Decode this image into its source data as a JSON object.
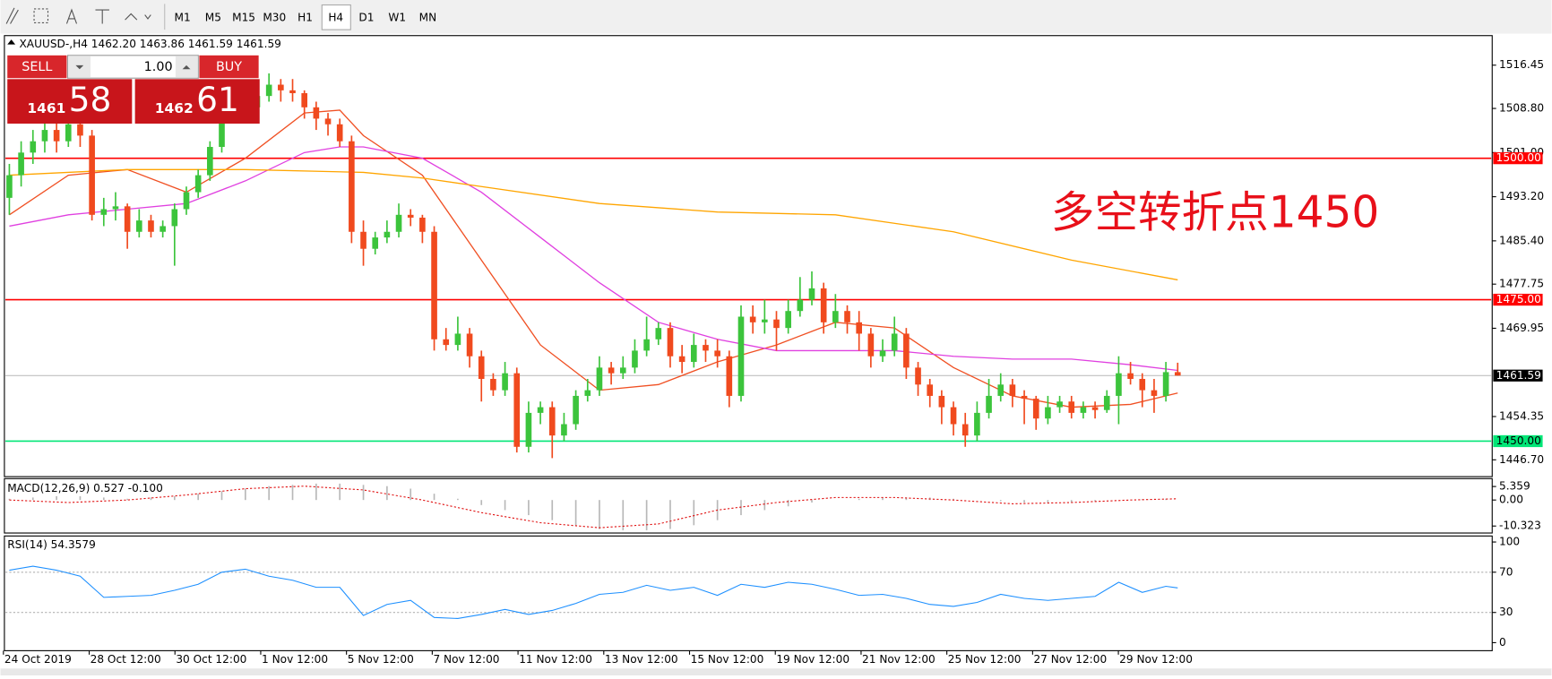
{
  "toolbar": {
    "timeframes": [
      "M1",
      "M5",
      "M15",
      "M30",
      "H1",
      "H4",
      "D1",
      "W1",
      "MN"
    ],
    "active": 5
  },
  "trade_panel": {
    "sell": "SELL",
    "buy": "BUY",
    "lots": "1.00",
    "bid_small": "1461",
    "bid_big": "58",
    "ask_small": "1462",
    "ask_big": "61"
  },
  "chart_data": {
    "type": "candlestick",
    "symbol_info": "XAUUSD-,H4  1462.20 1463.86 1461.59 1461.59",
    "up_color": "#3cc43c",
    "down_color": "#f04a1e",
    "candles": [
      [
        1493,
        1499,
        1490,
        1497
      ],
      [
        1497,
        1503,
        1495,
        1501
      ],
      [
        1501,
        1505,
        1499,
        1503
      ],
      [
        1503,
        1507,
        1501,
        1505
      ],
      [
        1505,
        1507,
        1501,
        1503
      ],
      [
        1503,
        1508,
        1502,
        1506
      ],
      [
        1506,
        1508,
        1502,
        1504
      ],
      [
        1504,
        1505,
        1489,
        1490
      ],
      [
        1490,
        1493,
        1488,
        1491
      ],
      [
        1491,
        1494,
        1489,
        1491.5
      ],
      [
        1491.5,
        1492,
        1484,
        1487
      ],
      [
        1487,
        1491,
        1486,
        1489
      ],
      [
        1489,
        1490,
        1486,
        1487
      ],
      [
        1487,
        1489,
        1486,
        1488
      ],
      [
        1488,
        1492,
        1481,
        1491
      ],
      [
        1491,
        1495,
        1490,
        1494
      ],
      [
        1494,
        1498,
        1493,
        1497
      ],
      [
        1497,
        1503,
        1496,
        1502
      ],
      [
        1502,
        1509,
        1501,
        1508
      ],
      [
        1508,
        1512,
        1507,
        1510
      ],
      [
        1510,
        1511,
        1507,
        1509
      ],
      [
        1509,
        1513,
        1508,
        1511
      ],
      [
        1511,
        1515,
        1510,
        1513
      ],
      [
        1513,
        1514,
        1510,
        1512
      ],
      [
        1512,
        1514,
        1510,
        1511.5
      ],
      [
        1511.5,
        1512,
        1507,
        1509
      ],
      [
        1509,
        1510,
        1505,
        1507
      ],
      [
        1507,
        1508,
        1504,
        1506
      ],
      [
        1506,
        1507,
        1502,
        1503
      ],
      [
        1503,
        1504,
        1485,
        1487
      ],
      [
        1487,
        1489,
        1481,
        1484
      ],
      [
        1484,
        1487,
        1483,
        1486
      ],
      [
        1486,
        1489,
        1485,
        1487
      ],
      [
        1487,
        1492,
        1486,
        1490
      ],
      [
        1490,
        1491,
        1488,
        1489.5
      ],
      [
        1489.5,
        1490,
        1485,
        1487
      ],
      [
        1487,
        1488,
        1466,
        1468
      ],
      [
        1468,
        1470,
        1466,
        1467
      ],
      [
        1467,
        1472,
        1466,
        1469
      ],
      [
        1469,
        1470,
        1463,
        1465
      ],
      [
        1465,
        1466,
        1457,
        1461
      ],
      [
        1461,
        1462,
        1458,
        1459
      ],
      [
        1459,
        1464,
        1458,
        1462
      ],
      [
        1462,
        1463,
        1448,
        1449
      ],
      [
        1449,
        1457,
        1448,
        1455
      ],
      [
        1455,
        1457,
        1453,
        1456
      ],
      [
        1456,
        1457,
        1447,
        1451
      ],
      [
        1451,
        1455,
        1450,
        1453
      ],
      [
        1453,
        1459,
        1452,
        1458
      ],
      [
        1458,
        1461,
        1457,
        1459
      ],
      [
        1459,
        1465,
        1458,
        1463
      ],
      [
        1463,
        1464,
        1460,
        1462
      ],
      [
        1462,
        1465,
        1461,
        1463
      ],
      [
        1463,
        1468,
        1462,
        1466
      ],
      [
        1466,
        1472,
        1465,
        1468
      ],
      [
        1468,
        1471,
        1467,
        1470
      ],
      [
        1470,
        1471,
        1463,
        1465
      ],
      [
        1465,
        1467,
        1462,
        1464
      ],
      [
        1464,
        1469,
        1463,
        1467
      ],
      [
        1467,
        1468,
        1464,
        1466
      ],
      [
        1466,
        1468,
        1463,
        1465
      ],
      [
        1465,
        1466,
        1456,
        1458
      ],
      [
        1458,
        1474,
        1457,
        1472
      ],
      [
        1472,
        1474,
        1469,
        1471
      ],
      [
        1471,
        1475,
        1469,
        1471.5
      ],
      [
        1471.5,
        1473,
        1466,
        1470
      ],
      [
        1470,
        1475,
        1469,
        1473
      ],
      [
        1473,
        1479,
        1472,
        1475
      ],
      [
        1475,
        1480,
        1474,
        1477
      ],
      [
        1477,
        1478,
        1469,
        1471
      ],
      [
        1471,
        1476,
        1470,
        1473
      ],
      [
        1473,
        1474,
        1469,
        1471
      ],
      [
        1471,
        1473,
        1466,
        1469
      ],
      [
        1469,
        1470,
        1463,
        1465
      ],
      [
        1465,
        1468,
        1464,
        1466
      ],
      [
        1466,
        1472,
        1465,
        1469
      ],
      [
        1469,
        1470,
        1461,
        1463
      ],
      [
        1463,
        1464,
        1458,
        1460
      ],
      [
        1460,
        1461,
        1456,
        1458
      ],
      [
        1458,
        1459,
        1453,
        1456
      ],
      [
        1456,
        1457,
        1451,
        1453
      ],
      [
        1453,
        1455,
        1449,
        1451
      ],
      [
        1451,
        1457,
        1450,
        1455
      ],
      [
        1455,
        1461,
        1454,
        1458
      ],
      [
        1458,
        1462,
        1457,
        1460
      ],
      [
        1460,
        1461,
        1456,
        1458
      ],
      [
        1458,
        1459,
        1453,
        1457.5
      ],
      [
        1457.5,
        1458,
        1452,
        1454
      ],
      [
        1454,
        1458,
        1453,
        1456
      ],
      [
        1456,
        1458,
        1455,
        1457
      ],
      [
        1457,
        1458,
        1454,
        1455
      ],
      [
        1455,
        1457,
        1454,
        1456
      ],
      [
        1456,
        1457,
        1454,
        1455.5
      ],
      [
        1455.5,
        1459,
        1455,
        1458
      ],
      [
        1458,
        1465,
        1453,
        1462
      ],
      [
        1462,
        1464,
        1460,
        1461
      ],
      [
        1461,
        1462,
        1456,
        1459
      ],
      [
        1459,
        1461,
        1455,
        1458
      ],
      [
        1458,
        1464,
        1457,
        1462.2
      ],
      [
        1462.2,
        1463.86,
        1461.59,
        1461.59
      ]
    ],
    "ylim": [
      1443.9,
      1521.5
    ],
    "yticks": [
      1516.45,
      {
        "value": 1508.8,
        "label": "1508.80"
      },
      {
        "value": 1501,
        "label": "1501.00"
      },
      {
        "value": 1493.2,
        "label": "1493.20"
      },
      {
        "value": 1485.4,
        "label": "1485.40"
      },
      1477.75,
      1469.95,
      1454.35,
      {
        "value": 1446.7,
        "label": "1446.70"
      }
    ],
    "levels": [
      {
        "value": 1500,
        "label": "1500.00",
        "color": "#ff0000"
      },
      {
        "value": 1475,
        "label": "1475.00",
        "color": "#ff0000"
      },
      {
        "value": 1450,
        "label": "1450.00",
        "color": "#00e676"
      }
    ],
    "current_price": {
      "value": 1461.59,
      "label": "1461.59"
    },
    "moving_averages": [
      {
        "color": "#f05023",
        "x": [
          0,
          5,
          10,
          15,
          20,
          25,
          28,
          30,
          35,
          40,
          45,
          50,
          55,
          60,
          65,
          70,
          75,
          80,
          85,
          90,
          95,
          99
        ],
        "values": [
          1490,
          1497,
          1498,
          1494,
          1500,
          1508,
          1508.5,
          1504,
          1497,
          1482,
          1467,
          1459,
          1460,
          1464,
          1467,
          1471,
          1470,
          1463,
          1458,
          1456,
          1456.5,
          1458.5
        ]
      },
      {
        "color": "#e040e0",
        "x": [
          0,
          5,
          10,
          15,
          20,
          25,
          28,
          30,
          35,
          40,
          45,
          50,
          55,
          60,
          65,
          70,
          75,
          80,
          85,
          90,
          95,
          99
        ],
        "values": [
          1488,
          1490,
          1491,
          1492,
          1496,
          1501,
          1502,
          1502,
          1500,
          1494,
          1486,
          1478,
          1471,
          1468,
          1466,
          1466,
          1466,
          1465,
          1464.5,
          1464.5,
          1463.5,
          1462.5
        ]
      },
      {
        "color": "#ffa500",
        "x": [
          0,
          10,
          20,
          30,
          35,
          40,
          50,
          60,
          70,
          80,
          90,
          99
        ],
        "values": [
          1497,
          1498,
          1498,
          1497.5,
          1496.5,
          1495,
          1492,
          1490.5,
          1490,
          1487,
          1482,
          1478.5
        ]
      }
    ],
    "annotation": "多空转折点1450",
    "x_labels": [
      "24 Oct 2019",
      "28 Oct 12:00",
      "30 Oct 12:00",
      "1 Nov 12:00",
      "5 Nov 12:00",
      "7 Nov 12:00",
      "11 Nov 12:00",
      "13 Nov 12:00",
      "15 Nov 12:00",
      "19 Nov 12:00",
      "21 Nov 12:00",
      "25 Nov 12:00",
      "27 Nov 12:00",
      "29 Nov 12:00"
    ],
    "macd": {
      "label": "MACD(12,26,9) 0.527 -0.100",
      "ylim": [
        -12.7,
        7.7
      ],
      "yticks": [
        5.359,
        {
          "value": 0,
          "label": "0.00"
        },
        -10.323
      ],
      "histogram": {
        "x": [
          0,
          2,
          4,
          6,
          8,
          10,
          12,
          14,
          16,
          18,
          20,
          22,
          24,
          26,
          28,
          30,
          32,
          34,
          36,
          38,
          40,
          42,
          44,
          46,
          48,
          50,
          52,
          54,
          56,
          58,
          60,
          62,
          64,
          66,
          68,
          70,
          72,
          74,
          76,
          78,
          80,
          82,
          84,
          86,
          88,
          90,
          92,
          94,
          96,
          98
        ],
        "values": [
          0.5,
          1,
          1.5,
          1.5,
          1,
          0.5,
          1,
          1.5,
          2.5,
          3.5,
          4.5,
          5.5,
          6,
          6.5,
          6.5,
          6,
          5.5,
          4.5,
          2.5,
          0.5,
          -2,
          -4,
          -6,
          -8,
          -10,
          -11.5,
          -12,
          -12,
          -11.5,
          -10,
          -8,
          -6,
          -4,
          -2.5,
          -1,
          0,
          0.5,
          1,
          1,
          1,
          0.5,
          0,
          -0.5,
          -1,
          -1,
          -1,
          -0.5,
          0,
          0.3,
          0.5
        ]
      },
      "signal": {
        "x": [
          0,
          5,
          10,
          15,
          20,
          25,
          30,
          35,
          40,
          45,
          50,
          55,
          60,
          65,
          70,
          75,
          80,
          85,
          90,
          95,
          99
        ],
        "values": [
          0,
          -1,
          0,
          2,
          4.5,
          5.5,
          4,
          0,
          -5,
          -9,
          -11,
          -9.5,
          -4,
          -1,
          1,
          1,
          0,
          -1.5,
          -1,
          0,
          0.5
        ]
      }
    },
    "rsi": {
      "label": "RSI(14) 54.3579",
      "ylim": [
        -7,
        105
      ],
      "yticks": [
        100,
        70,
        30,
        0
      ],
      "color": "#1e90ff",
      "x": [
        0,
        2,
        4,
        6,
        8,
        10,
        12,
        14,
        16,
        18,
        20,
        22,
        24,
        26,
        28,
        30,
        32,
        34,
        36,
        38,
        40,
        42,
        44,
        46,
        48,
        50,
        52,
        54,
        56,
        58,
        60,
        62,
        64,
        66,
        68,
        70,
        72,
        74,
        76,
        78,
        80,
        82,
        84,
        86,
        88,
        90,
        92,
        94,
        96,
        98,
        99
      ],
      "values": [
        72,
        76,
        72,
        66,
        45,
        46,
        47,
        52,
        58,
        70,
        73,
        66,
        62,
        55,
        55,
        27,
        38,
        42,
        25,
        24,
        28,
        33,
        28,
        32,
        39,
        48,
        50,
        57,
        52,
        55,
        47,
        58,
        55,
        60,
        58,
        53,
        47,
        48,
        44,
        38,
        36,
        40,
        48,
        44,
        42,
        44,
        46,
        60,
        50,
        56,
        54.3579
      ]
    }
  }
}
